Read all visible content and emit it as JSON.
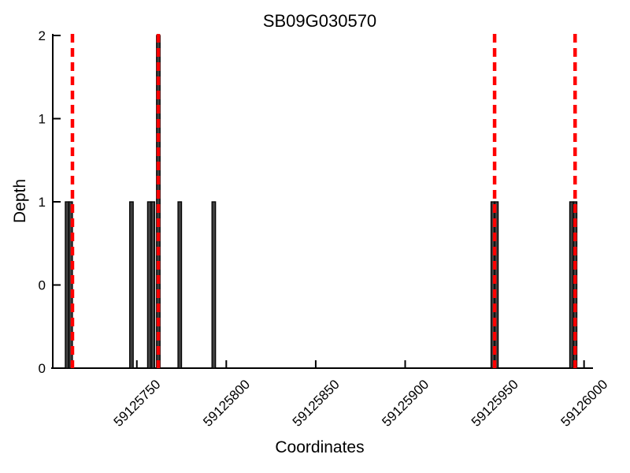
{
  "chart_data": {
    "type": "bar",
    "title": "SB09G030570",
    "xlabel": "Coordinates",
    "ylabel": "Depth",
    "xlim": [
      59125703,
      59126005
    ],
    "ylim": [
      0,
      2
    ],
    "grid": false,
    "legend": null,
    "background": "#ffffff",
    "axis_color": "#000000",
    "bar_fill_color": "#404040",
    "bar_border_color": "#000000",
    "x_ticks": [
      {
        "value": 59125750,
        "label": "59125750"
      },
      {
        "value": 59125800,
        "label": "59125800"
      },
      {
        "value": 59125850,
        "label": "59125850"
      },
      {
        "value": 59125900,
        "label": "59125900"
      },
      {
        "value": 59125950,
        "label": "59125950"
      },
      {
        "value": 59126000,
        "label": "59126000"
      }
    ],
    "y_ticks": [
      {
        "value": 0,
        "label": "0"
      },
      {
        "value": 0.5,
        "label": "0"
      },
      {
        "value": 1,
        "label": "1"
      },
      {
        "value": 1.5,
        "label": "1"
      },
      {
        "value": 2,
        "label": "2"
      }
    ],
    "bars": [
      {
        "coordinate": 59125711,
        "depth": 1
      },
      {
        "coordinate": 59125713,
        "depth": 1
      },
      {
        "coordinate": 59125747,
        "depth": 1
      },
      {
        "coordinate": 59125757,
        "depth": 1
      },
      {
        "coordinate": 59125759,
        "depth": 1
      },
      {
        "coordinate": 59125762,
        "depth": 2
      },
      {
        "coordinate": 59125774,
        "depth": 1
      },
      {
        "coordinate": 59125793,
        "depth": 1
      },
      {
        "coordinate": 59125949,
        "depth": 1
      },
      {
        "coordinate": 59125951,
        "depth": 1
      },
      {
        "coordinate": 59125993,
        "depth": 1
      },
      {
        "coordinate": 59125995,
        "depth": 1
      }
    ],
    "marker_lines": {
      "style": "dashed",
      "color": "#ff0000",
      "positions": [
        59125714,
        59125762,
        59125950,
        59125995
      ]
    }
  }
}
